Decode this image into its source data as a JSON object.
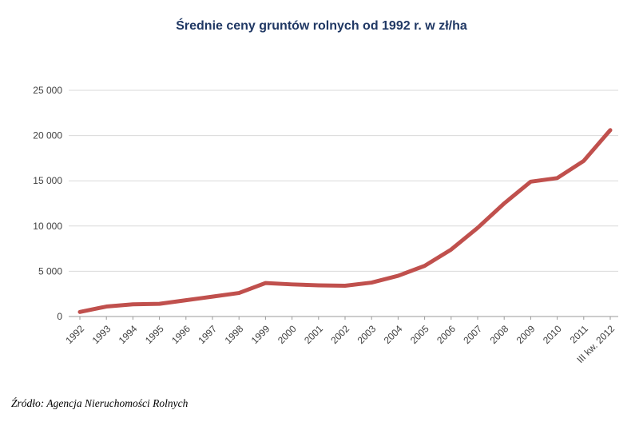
{
  "title": "Średnie ceny gruntów rolnych od 1992 r. w zł/ha",
  "source": "Źródło: Agencja Nieruchomości Rolnych",
  "colors": {
    "line": "#c0504d",
    "grid": "#d9d9d9",
    "axis": "#9a9a9a",
    "tick_text": "#404040",
    "title_text": "#203864",
    "source_text": "#000000",
    "background": "#ffffff"
  },
  "chart_data": {
    "type": "line",
    "title": "Średnie ceny gruntów rolnych od 1992 r. w zł/ha",
    "xlabel": "",
    "ylabel": "",
    "categories": [
      "1992",
      "1993",
      "1994",
      "1995",
      "1996",
      "1997",
      "1998",
      "1999",
      "2000",
      "2001",
      "2002",
      "2003",
      "2004",
      "2005",
      "2006",
      "2007",
      "2008",
      "2009",
      "2010",
      "2011",
      "III kw. 2012"
    ],
    "values": [
      500,
      1100,
      1350,
      1400,
      1800,
      2200,
      2600,
      3700,
      3550,
      3450,
      3400,
      3750,
      4500,
      5600,
      7400,
      9800,
      12500,
      14900,
      15300,
      17200,
      20600
    ],
    "ylim": [
      0,
      25000
    ],
    "ytick_step": 5000,
    "ytick_labels": [
      "0",
      "5 000",
      "10 000",
      "15 000",
      "20 000",
      "25 000"
    ],
    "grid": true,
    "legend": "none",
    "line_width": 5,
    "source": "Źródło: Agencja Nieruchomości Rolnych"
  }
}
